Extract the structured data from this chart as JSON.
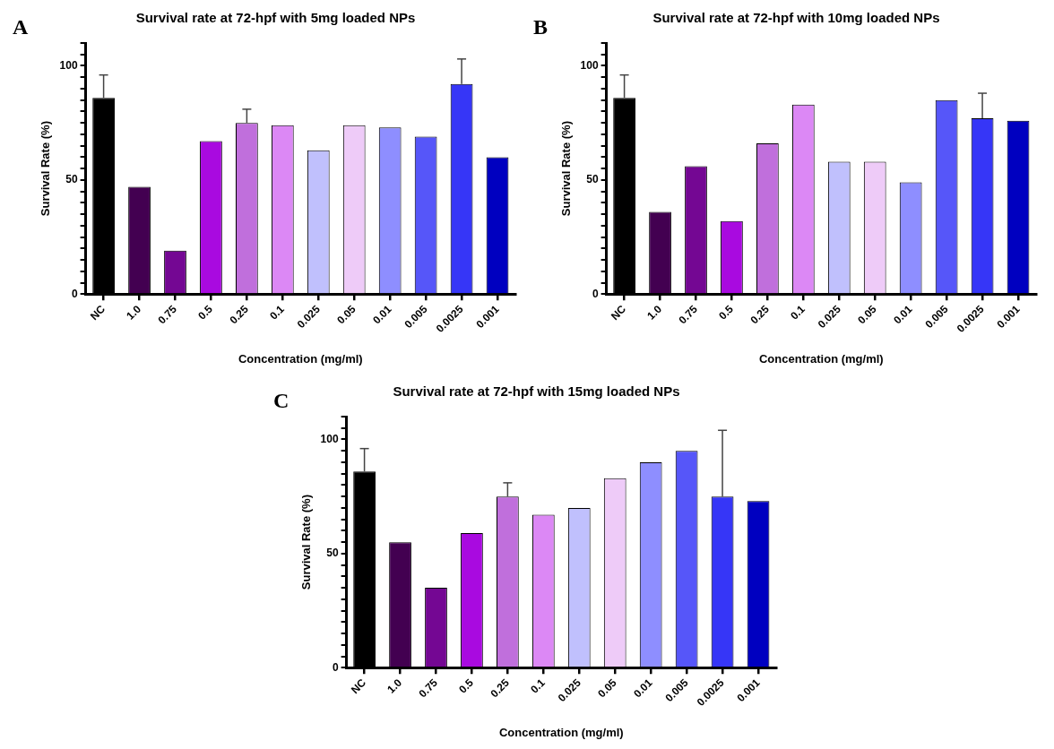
{
  "chart_data": [
    {
      "type": "bar",
      "title": "Survival rate at 72-hpf with 5mg loaded NPs",
      "xlabel": "Concentration (mg/ml)",
      "ylabel": "Survival Rate (%)",
      "annotations": [
        "A"
      ],
      "categories": [
        "NC",
        "1.0",
        "0.75",
        "0.5",
        "0.25",
        "0.1",
        "0.025",
        "0.05",
        "0.01",
        "0.005",
        "0.0025",
        "0.001"
      ],
      "values": [
        86,
        47,
        19,
        67,
        75,
        74,
        63,
        74,
        73,
        69,
        92,
        60
      ],
      "errors": [
        [
          86,
          96
        ],
        null,
        null,
        null,
        [
          75,
          81
        ],
        null,
        null,
        null,
        null,
        null,
        [
          92,
          103
        ],
        null
      ],
      "colors": [
        "#000000",
        "#430051",
        "#740793",
        "#a90ae0",
        "#c06fdc",
        "#dc88f5",
        "#c0c0fd",
        "#eecbf8",
        "#8e8eff",
        "#5656f9",
        "#3636f7",
        "#0000c0"
      ],
      "ylim": [
        0,
        110
      ],
      "yticks": [
        0,
        {
          "value": 5,
          "label": null
        },
        {
          "value": 10,
          "label": null
        },
        {
          "value": 15,
          "label": null
        },
        {
          "value": 20,
          "label": null
        },
        {
          "value": 25,
          "label": null
        },
        {
          "value": 30,
          "label": null
        },
        {
          "value": 35,
          "label": null
        },
        {
          "value": 40,
          "label": null
        },
        {
          "value": 45,
          "label": null
        },
        50,
        {
          "value": 55,
          "label": null
        },
        {
          "value": 60,
          "label": null
        },
        {
          "value": 65,
          "label": null
        },
        {
          "value": 70,
          "label": null
        },
        {
          "value": 75,
          "label": null
        },
        {
          "value": 80,
          "label": null
        },
        {
          "value": 85,
          "label": null
        },
        {
          "value": 90,
          "label": null
        },
        {
          "value": 95,
          "label": null
        },
        100,
        {
          "value": 105,
          "label": null
        },
        {
          "value": 110,
          "label": null
        }
      ]
    },
    {
      "type": "bar",
      "title": "Survival rate at 72-hpf with 10mg loaded NPs",
      "xlabel": "Concentration (mg/ml)",
      "ylabel": "Survival Rate (%)",
      "annotations": [
        "B"
      ],
      "categories": [
        "NC",
        "1.0",
        "0.75",
        "0.5",
        "0.25",
        "0.1",
        "0.025",
        "0.05",
        "0.01",
        "0.005",
        "0.0025",
        "0.001"
      ],
      "values": [
        86,
        36,
        56,
        32,
        66,
        83,
        58,
        58,
        49,
        85,
        77,
        76
      ],
      "errors": [
        [
          86,
          96
        ],
        null,
        null,
        null,
        null,
        null,
        null,
        null,
        null,
        null,
        [
          77,
          88
        ],
        null
      ],
      "colors": [
        "#000000",
        "#430051",
        "#740793",
        "#a90ae0",
        "#c06fdc",
        "#dc88f5",
        "#c0c0fd",
        "#eecbf8",
        "#8e8eff",
        "#5656f9",
        "#3636f7",
        "#0000c0"
      ],
      "ylim": [
        0,
        110
      ],
      "yticks": [
        0,
        {
          "value": 5,
          "label": null
        },
        {
          "value": 10,
          "label": null
        },
        {
          "value": 15,
          "label": null
        },
        {
          "value": 20,
          "label": null
        },
        {
          "value": 25,
          "label": null
        },
        {
          "value": 30,
          "label": null
        },
        {
          "value": 35,
          "label": null
        },
        {
          "value": 40,
          "label": null
        },
        {
          "value": 45,
          "label": null
        },
        50,
        {
          "value": 55,
          "label": null
        },
        {
          "value": 60,
          "label": null
        },
        {
          "value": 65,
          "label": null
        },
        {
          "value": 70,
          "label": null
        },
        {
          "value": 75,
          "label": null
        },
        {
          "value": 80,
          "label": null
        },
        {
          "value": 85,
          "label": null
        },
        {
          "value": 90,
          "label": null
        },
        {
          "value": 95,
          "label": null
        },
        100,
        {
          "value": 105,
          "label": null
        },
        {
          "value": 110,
          "label": null
        }
      ]
    },
    {
      "type": "bar",
      "title": "Survival rate at 72-hpf with 15mg loaded NPs",
      "xlabel": "Concentration (mg/ml)",
      "ylabel": "Survival Rate (%)",
      "annotations": [
        "C"
      ],
      "categories": [
        "NC",
        "1.0",
        "0.75",
        "0.5",
        "0.25",
        "0.1",
        "0.025",
        "0.05",
        "0.01",
        "0.005",
        "0.0025",
        "0.001"
      ],
      "values": [
        86,
        55,
        35,
        59,
        75,
        67,
        70,
        83,
        90,
        95,
        75,
        73
      ],
      "errors": [
        [
          86,
          96
        ],
        null,
        null,
        null,
        [
          75,
          81
        ],
        null,
        null,
        null,
        null,
        null,
        [
          75,
          104
        ],
        null
      ],
      "colors": [
        "#000000",
        "#430051",
        "#740793",
        "#a90ae0",
        "#c06fdc",
        "#dc88f5",
        "#c0c0fd",
        "#eecbf8",
        "#8e8eff",
        "#5656f9",
        "#3636f7",
        "#0000c0"
      ],
      "ylim": [
        0,
        110
      ],
      "yticks": [
        0,
        {
          "value": 5,
          "label": null
        },
        {
          "value": 10,
          "label": null
        },
        {
          "value": 15,
          "label": null
        },
        {
          "value": 20,
          "label": null
        },
        {
          "value": 25,
          "label": null
        },
        {
          "value": 30,
          "label": null
        },
        {
          "value": 35,
          "label": null
        },
        {
          "value": 40,
          "label": null
        },
        {
          "value": 45,
          "label": null
        },
        50,
        {
          "value": 55,
          "label": null
        },
        {
          "value": 60,
          "label": null
        },
        {
          "value": 65,
          "label": null
        },
        {
          "value": 70,
          "label": null
        },
        {
          "value": 75,
          "label": null
        },
        {
          "value": 80,
          "label": null
        },
        {
          "value": 85,
          "label": null
        },
        {
          "value": 90,
          "label": null
        },
        {
          "value": 95,
          "label": null
        },
        100,
        {
          "value": 105,
          "label": null
        },
        {
          "value": 110,
          "label": null
        }
      ]
    }
  ]
}
